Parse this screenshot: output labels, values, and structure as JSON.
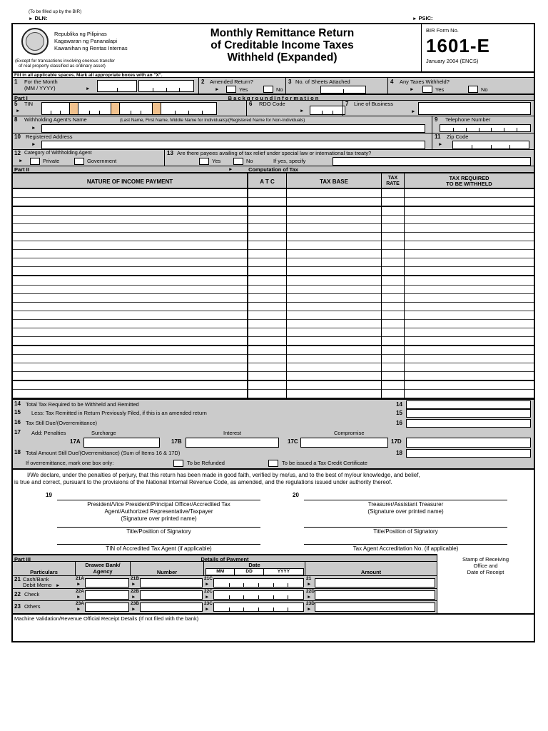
{
  "top": {
    "bir_note": "(To be filled up by the BIR)",
    "dln": "DLN:",
    "psic": "PSIC:"
  },
  "icons": {
    "arrow": "►"
  },
  "header": {
    "agency1": "Republika ng Pilipinas",
    "agency2": "Kagawaran ng Pananalapi",
    "agency3": "Kawanihan ng Rentas Internas",
    "exception1": "(Except for transactions involving onerous transfer",
    "exception2": "of real property classified as ordinary asset)",
    "title1": "Monthly Remittance Return",
    "title2": "of Creditable  Income Taxes",
    "title3": "Withheld (Expanded)",
    "form_no_label": "BIR Form No.",
    "form_no": "1601-E",
    "edition": "January 2004 (ENCS)"
  },
  "instruction": "Fill in all applicable spaces. Mark all appropriate boxes with an \"X\".",
  "part1": {
    "bar_left": "Part I",
    "bar_title": "B a c k g r o u n d   I n f o r m a t i o n",
    "l1_no": "1",
    "l1_label": "For the Month",
    "l1_sub": "(MM / YYYY)",
    "l2_no": "2",
    "l2_label": "Amended Return?",
    "l2_yes": "Yes",
    "l2_no_opt": "No",
    "l3_no": "3",
    "l3_label": "No. of  Sheets Attached",
    "l4_no": "4",
    "l4_label": "Any Taxes Withheld?",
    "l4_yes": "Yes",
    "l4_no_opt": "No",
    "l5_no": "5",
    "l5_label": "TIN",
    "l6_no": "6",
    "l6_label": "RDO Code",
    "l7_no": "7",
    "l7_label": "Line of Business",
    "l8_no": "8",
    "l8_label": "Withholding Agent's Name",
    "l8_sub": "(Last Name, First Name, Middle Name for Individuals)/(Registered Name for Non-Individuals)",
    "l9_no": "9",
    "l9_label": "Telephone Number",
    "l10_no": "10",
    "l10_label": "Registered Address",
    "l11_no": "11",
    "l11_label": "Zip Code",
    "l12_no": "12",
    "l12_label": "Category of Withholding Agent",
    "l12_private": "Private",
    "l12_government": "Government",
    "l13_no": "13",
    "l13_label": "Are there payees availing of tax relief under special law or international tax treaty?",
    "l13_yes": "Yes",
    "l13_no_opt": "No",
    "l13_specify": "If yes, specify"
  },
  "part2": {
    "bar_left": "Part II",
    "bar_title": "Computation of Tax",
    "col_nature": "NATURE OF INCOME PAYMENT",
    "col_atc": "A T C",
    "col_base": "TAX BASE",
    "col_rate1": "TAX",
    "col_rate2": "RATE",
    "col_req1": "TAX REQUIRED",
    "col_req2": "TO BE WITHHELD",
    "empty_rows": 24,
    "l14_no": "14",
    "l14_label": "Total Tax Required to be Withheld and Remitted",
    "l15_no": "15",
    "l15_label": "Less: Tax Remitted in Return Previously Filed, if this is an amended return",
    "l16_no": "16",
    "l16_label": "Tax  Still Due/(Overremittance)",
    "l17_no": "17",
    "l17_label": "Add:  Penalties",
    "l17_surcharge": "Surcharge",
    "l17_interest": "Interest",
    "l17_compromise": "Compromise",
    "l17a": "17A",
    "l17b": "17B",
    "l17c": "17C",
    "l17d": "17D",
    "l18_no": "18",
    "l18_label": "Total Amount Still Due/(Overremittance) (Sum of Items 16  & 17D)",
    "overremit_label": "If overremittance, mark one box only:",
    "refund": "To be Refunded",
    "tcc": "To be issued a Tax Credit Certificate"
  },
  "declaration": {
    "line1": "I/We declare, under the penalties of perjury, that this return has been made in good faith, verified by me/us, and to the best of my/our knowledge, and belief,",
    "line2": "is true and correct, pursuant to the provisions of the National Internal Revenue Code, as amended, and the regulations issued under authority thereof.",
    "sig19_no": "19",
    "sig19_line1": "President/Vice President/Principal Officer/Accredited Tax",
    "sig19_line2": "Agent/Authorized Representative/Taxpayer",
    "sig19_line3": "(Signature over printed name)",
    "sig20_no": "20",
    "sig20_line1": "Treasurer/Assistant Treasurer",
    "sig20_line2": "(Signature over printed name)",
    "title_left": "Title/Position of Signatory",
    "title_right": "Title/Position of Signatory",
    "tin_agent": "TIN of Accredited Tax Agent (if applicable)",
    "accreditation": "Tax Agent Accreditation No. (if applicable)"
  },
  "part3": {
    "bar_left": "Part III",
    "bar_title": "Details of Payment",
    "stamp1": "Stamp of Receiving",
    "stamp2": "Office and",
    "stamp3": "Date of Receipt",
    "col_particulars": "Particulars",
    "col_drawee1": "Drawee Bank/",
    "col_drawee2": "Agency",
    "col_number": "Number",
    "col_date": "Date",
    "col_mm": "MM",
    "col_dd": "DD",
    "col_yyyy": "YYYY",
    "col_amount": "Amount",
    "rows": [
      {
        "no": "21",
        "label1": "Cash/Bank",
        "label2": "Debit Memo",
        "a": "21A",
        "b": "21B",
        "c": "21C",
        "d": "21"
      },
      {
        "no": "22",
        "label1": "Check",
        "label2": "",
        "a": "22A",
        "b": "22B",
        "c": "22C",
        "d": "22D"
      },
      {
        "no": "23",
        "label1": "Others",
        "label2": "",
        "a": "23A",
        "b": "23B",
        "c": "23C",
        "d": "23D"
      }
    ],
    "machine_validation": "Machine Validation/Revenue Official Receipt Details (If not filed with the bank)"
  },
  "colors": {
    "form_gray": "#cbcbcb",
    "tin_highlight": "#f2c28e",
    "border": "#000000"
  }
}
